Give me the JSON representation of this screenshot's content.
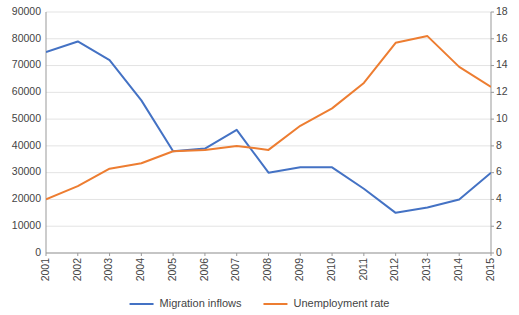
{
  "chart_data": {
    "type": "line",
    "x": [
      2001,
      2002,
      2003,
      2004,
      2005,
      2006,
      2007,
      2008,
      2009,
      2010,
      2011,
      2012,
      2013,
      2014,
      2015
    ],
    "xlim": [
      2001,
      2015
    ],
    "xticks": [
      2001,
      2002,
      2003,
      2004,
      2005,
      2006,
      2007,
      2008,
      2009,
      2010,
      2011,
      2012,
      2013,
      2014,
      2015
    ],
    "series": [
      {
        "name": "Migration inflows",
        "color": "#4472C4",
        "values": [
          75000,
          79000,
          72000,
          57000,
          38000,
          39000,
          46000,
          30000,
          32000,
          32000,
          24000,
          15000,
          17000,
          20000,
          30000
        ]
      },
      {
        "name": "Unemployment rate",
        "color": "#ED7D31",
        "axis": "y2",
        "values": [
          4.0,
          5.0,
          6.3,
          6.7,
          7.6,
          7.7,
          8.0,
          7.7,
          9.5,
          10.8,
          12.7,
          15.7,
          16.2,
          13.9,
          12.4
        ]
      }
    ],
    "ylim": [
      0,
      90000
    ],
    "yticks": [
      0,
      10000,
      20000,
      30000,
      40000,
      50000,
      60000,
      70000,
      80000,
      90000
    ],
    "y2lim": [
      0,
      18
    ],
    "y2ticks": [
      0,
      2,
      4,
      6,
      8,
      10,
      12,
      14,
      16,
      18
    ],
    "grid": true,
    "legend": "bottom"
  }
}
